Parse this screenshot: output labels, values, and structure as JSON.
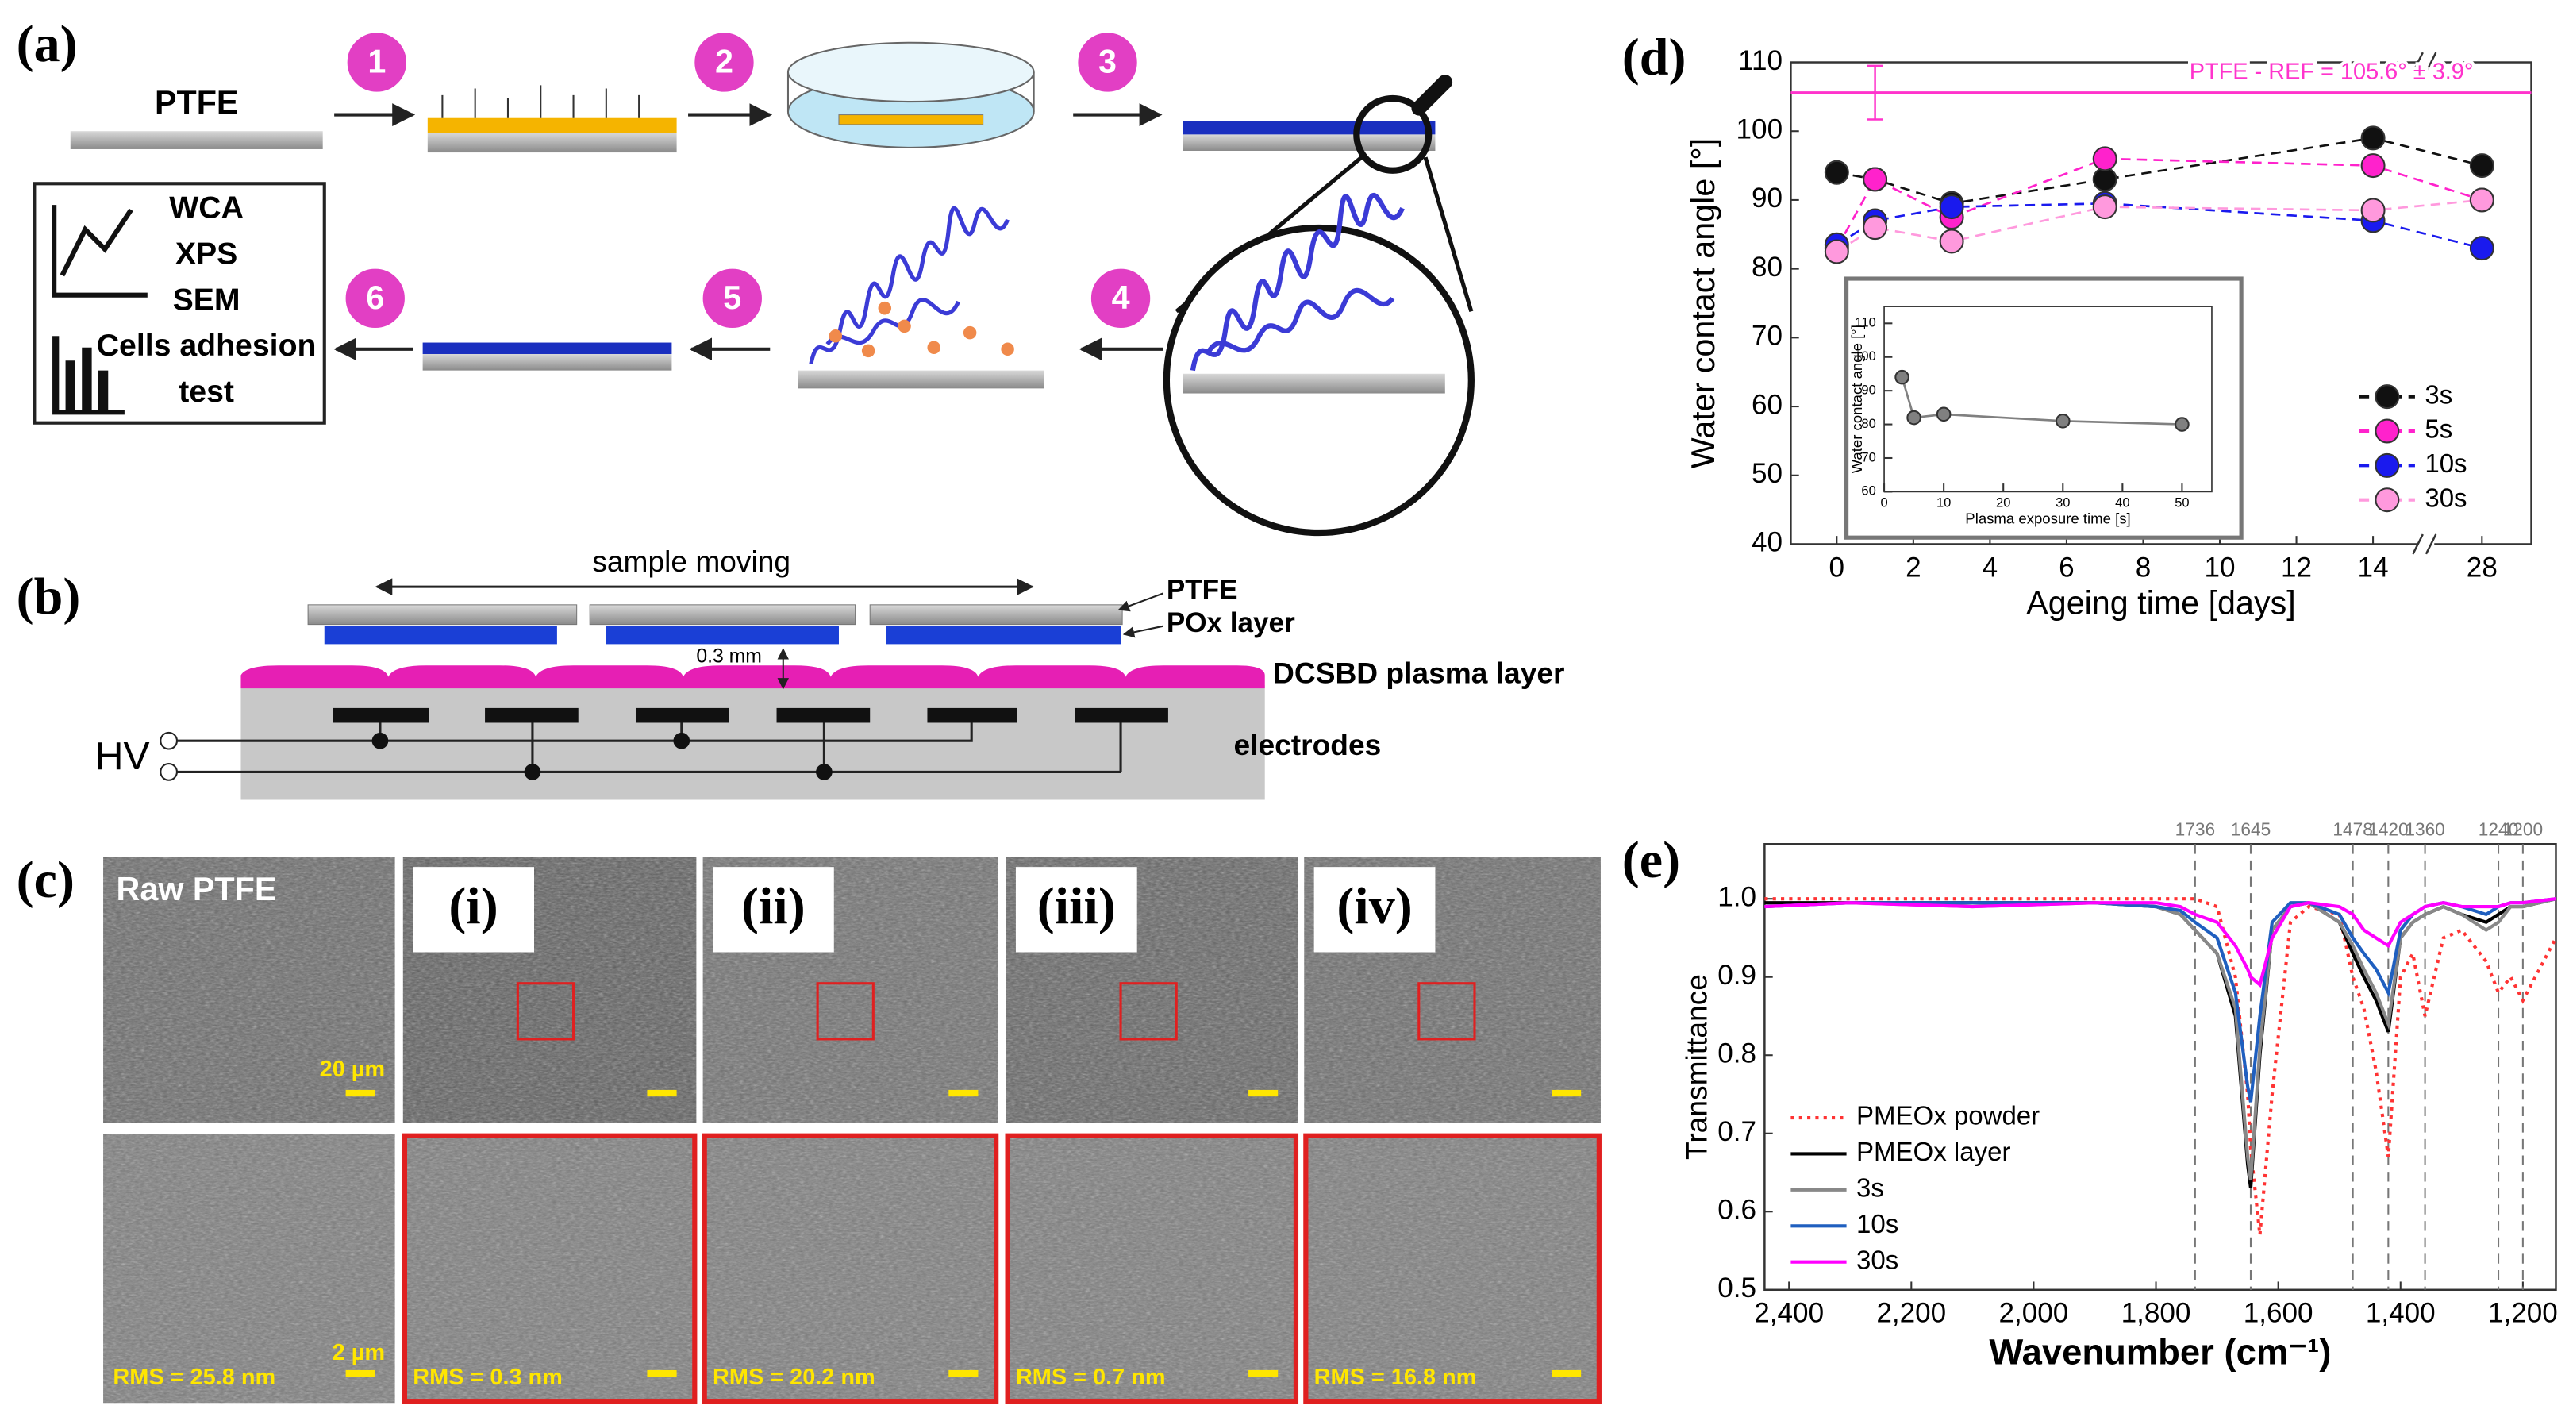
{
  "panel_a": {
    "label": "(a)",
    "substrate": "PTFE",
    "steps": [
      "1",
      "2",
      "3",
      "4",
      "5",
      "6"
    ],
    "analysis": [
      "WCA",
      "XPS",
      "SEM",
      "Cells adhesion",
      "test"
    ]
  },
  "panel_b": {
    "label": "(b)",
    "motion": "sample moving",
    "layers": [
      "PTFE",
      "POx layer"
    ],
    "gap": "0.3 mm",
    "plasma": "DCSBD plasma layer",
    "voltage": "HV",
    "electrodes": "electrodes"
  },
  "panel_c": {
    "label": "(c)",
    "columns": [
      {
        "title": "Raw PTFE",
        "scale_top": "20 µm",
        "scale_bottom": "2 µm",
        "rms": "RMS = 25.8 nm"
      },
      {
        "title": "(i)",
        "rms": "RMS = 0.3 nm"
      },
      {
        "title": "(ii)",
        "rms": "RMS = 20.2 nm"
      },
      {
        "title": "(iii)",
        "rms": "RMS = 0.7 nm"
      },
      {
        "title": "(iv)",
        "rms": "RMS = 16.8 nm"
      }
    ]
  },
  "chart_data": [
    {
      "panel_label": "(d)",
      "type": "line",
      "xlabel": "Ageing time [days]",
      "ylabel": "Water contact angle [°]",
      "x": [
        0,
        1,
        3,
        7,
        14,
        28
      ],
      "xlim": [
        -1.2,
        29.2
      ],
      "x_break": [
        15,
        27
      ],
      "xticks": [
        0,
        2,
        4,
        6,
        8,
        10,
        12,
        14,
        28
      ],
      "ylim": [
        40,
        110
      ],
      "yticks": [
        40,
        50,
        60,
        70,
        80,
        90,
        100,
        110
      ],
      "line_style": "dashed",
      "markers": true,
      "legend": "lower right",
      "reference": {
        "value": 105.6,
        "error": 3.9,
        "x": 1,
        "label": "PTFE - REF = 105.6° ± 3.9°",
        "color": "#ff33cc"
      },
      "series": [
        {
          "name": "3s",
          "color": "#111111",
          "values": [
            94,
            93,
            89.5,
            93,
            99,
            95
          ]
        },
        {
          "name": "5s",
          "color": "#ff22cc",
          "values": [
            83,
            93,
            87.5,
            96,
            95,
            90
          ]
        },
        {
          "name": "10s",
          "color": "#1a1aee",
          "values": [
            83.5,
            87,
            89,
            89.5,
            87,
            83
          ]
        },
        {
          "name": "30s",
          "color": "#ff99dd",
          "values": [
            82.5,
            86,
            84,
            89,
            88.5,
            90
          ]
        }
      ]
    },
    {
      "type": "line",
      "xlabel": "Plasma exposure time [s]",
      "ylabel": "Water contact angle [°]",
      "x": [
        3,
        5,
        10,
        30,
        50
      ],
      "values": [
        94,
        82,
        83,
        81,
        80
      ],
      "color": "#808080",
      "xlim": [
        0,
        55
      ],
      "xticks": [
        0,
        10,
        20,
        30,
        40,
        50
      ],
      "ylim": [
        60,
        115
      ],
      "yticks": [
        60,
        70,
        80,
        90,
        100,
        110
      ],
      "line_style": "solid",
      "markers": true
    },
    {
      "panel_label": "(e)",
      "type": "line",
      "xlabel": "Wavenumber (cm⁻¹)",
      "ylabel": "Transmittance",
      "x": [
        2440,
        2300,
        2100,
        1900,
        1800,
        1760,
        1736,
        1700,
        1670,
        1650,
        1645,
        1630,
        1610,
        1580,
        1550,
        1500,
        1478,
        1460,
        1440,
        1420,
        1400,
        1380,
        1360,
        1330,
        1300,
        1260,
        1240,
        1220,
        1200,
        1146
      ],
      "xlim": [
        2440,
        1146
      ],
      "xticks": [
        {
          "value": 2400,
          "label": "2,400"
        },
        {
          "value": 2200,
          "label": "2,200"
        },
        {
          "value": 2000,
          "label": "2,000"
        },
        {
          "value": 1800,
          "label": "1,800"
        },
        {
          "value": 1600,
          "label": "1,600"
        },
        {
          "value": 1400,
          "label": "1,400"
        },
        {
          "value": 1200,
          "label": "1,200"
        }
      ],
      "ylim": [
        0.5,
        1.07
      ],
      "yticks": [
        {
          "value": 1,
          "label": "1.0"
        },
        0.9,
        0.8,
        0.7,
        0.6,
        0.5
      ],
      "reference_lines": [
        1736,
        1645,
        1478,
        1420,
        1360,
        1240,
        1200
      ],
      "line_style": "solid",
      "markers": false,
      "legend": "lower left",
      "series": [
        {
          "name": "PMEOx powder",
          "color": "#ff3333",
          "line_style": "dotted",
          "values": [
            1,
            1,
            1,
            1,
            1,
            1,
            1,
            0.99,
            0.9,
            0.75,
            0.68,
            0.57,
            0.75,
            0.97,
            0.99,
            0.98,
            0.9,
            0.86,
            0.78,
            0.67,
            0.9,
            0.93,
            0.85,
            0.95,
            0.96,
            0.92,
            0.88,
            0.9,
            0.87,
            0.95
          ]
        },
        {
          "name": "PMEOx layer",
          "color": "#000000",
          "values": [
            0.995,
            0.995,
            0.995,
            0.995,
            0.99,
            0.98,
            0.96,
            0.93,
            0.85,
            0.66,
            0.63,
            0.8,
            0.96,
            0.99,
            0.995,
            0.97,
            0.93,
            0.9,
            0.87,
            0.83,
            0.95,
            0.97,
            0.98,
            0.99,
            0.98,
            0.97,
            0.98,
            0.99,
            0.99,
            1
          ]
        },
        {
          "name": "3s",
          "color": "#888888",
          "values": [
            0.99,
            0.995,
            0.99,
            0.995,
            0.99,
            0.98,
            0.96,
            0.93,
            0.86,
            0.67,
            0.64,
            0.81,
            0.96,
            0.99,
            0.995,
            0.97,
            0.94,
            0.91,
            0.88,
            0.84,
            0.95,
            0.97,
            0.98,
            0.99,
            0.98,
            0.96,
            0.97,
            0.99,
            0.99,
            1
          ]
        },
        {
          "name": "10s",
          "color": "#1f5fbf",
          "values": [
            0.99,
            0.995,
            0.995,
            0.995,
            0.99,
            0.985,
            0.97,
            0.95,
            0.88,
            0.76,
            0.74,
            0.85,
            0.97,
            0.995,
            0.995,
            0.98,
            0.95,
            0.93,
            0.91,
            0.88,
            0.96,
            0.98,
            0.99,
            0.995,
            0.99,
            0.98,
            0.99,
            0.995,
            0.995,
            1
          ]
        },
        {
          "name": "30s",
          "color": "#ff00ff",
          "values": [
            0.99,
            0.995,
            0.99,
            0.995,
            0.995,
            0.99,
            0.98,
            0.97,
            0.94,
            0.91,
            0.9,
            0.89,
            0.95,
            0.99,
            0.995,
            0.99,
            0.98,
            0.96,
            0.95,
            0.94,
            0.97,
            0.98,
            0.99,
            0.995,
            0.99,
            0.99,
            0.99,
            0.995,
            0.995,
            1
          ]
        }
      ]
    }
  ]
}
